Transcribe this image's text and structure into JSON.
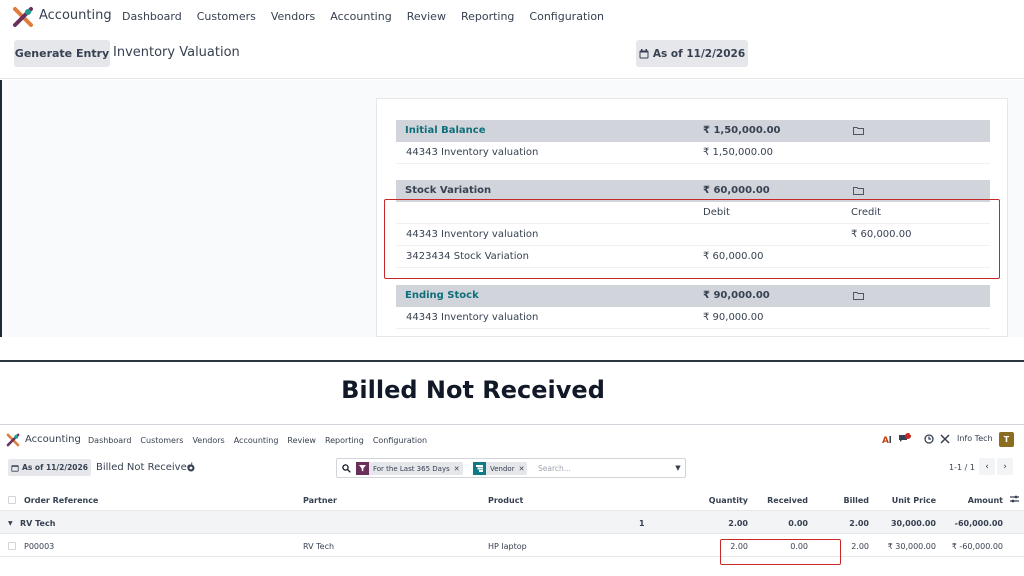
{
  "top": {
    "app_name": "Accounting",
    "menu": [
      "Dashboard",
      "Customers",
      "Vendors",
      "Accounting",
      "Review",
      "Reporting",
      "Configuration"
    ],
    "generate_entry": "Generate Entry",
    "page_title": "Inventory Valuation",
    "as_of": "As of 11/2/2026",
    "report": {
      "initial_balance": {
        "label": "Initial Balance",
        "amount": "₹ 1,50,000.00",
        "line_label": "44343 Inventory valuation",
        "line_amount": "₹ 1,50,000.00"
      },
      "stock_variation": {
        "label": "Stock Variation",
        "amount": "₹ 60,000.00",
        "debit_header": "Debit",
        "credit_header": "Credit",
        "lines": [
          {
            "label": "44343 Inventory valuation",
            "debit": "",
            "credit": "₹ 60,000.00"
          },
          {
            "label": "3423434 Stock Variation",
            "debit": "₹ 60,000.00",
            "credit": ""
          }
        ]
      },
      "ending_stock": {
        "label": "Ending Stock",
        "amount": "₹ 90,000.00",
        "line_label": "44343 Inventory valuation",
        "line_amount": "₹ 90,000.00"
      }
    }
  },
  "heading": "Billed Not Received",
  "bottom": {
    "app_name": "Accounting",
    "menu": [
      "Dashboard",
      "Customers",
      "Vendors",
      "Accounting",
      "Review",
      "Reporting",
      "Configuration"
    ],
    "company": "Info Tech",
    "avatar_letter": "T",
    "notification_count": "1",
    "as_of": "As of 11/2/2026",
    "page_title": "Billed Not Received",
    "search": {
      "facet_date": "For the Last 365 Days",
      "facet_group": "Vendor",
      "placeholder": "Search..."
    },
    "pager": "1-1 / 1",
    "columns": [
      "Order Reference",
      "Partner",
      "Product",
      "Quantity",
      "Received",
      "Billed",
      "Unit Price",
      "Amount"
    ],
    "group": {
      "name": "RV Tech",
      "count": "1",
      "quantity": "2.00",
      "received": "0.00",
      "billed": "2.00",
      "unit_price": "30,000.00",
      "amount": "-60,000.00"
    },
    "rows": [
      {
        "order_ref": "P00003",
        "partner": "RV Tech",
        "product": "HP laptop",
        "quantity": "2.00",
        "received": "0.00",
        "billed": "2.00",
        "unit_price": "₹ 30,000.00",
        "amount": "₹ -60,000.00"
      }
    ]
  },
  "colors": {
    "accent_teal": "#0e6f7a",
    "highlight_red": "#c62828",
    "section_grey": "#d1d5db",
    "facet_purple": "#6b2f5c",
    "facet_teal": "#0e7a86"
  }
}
